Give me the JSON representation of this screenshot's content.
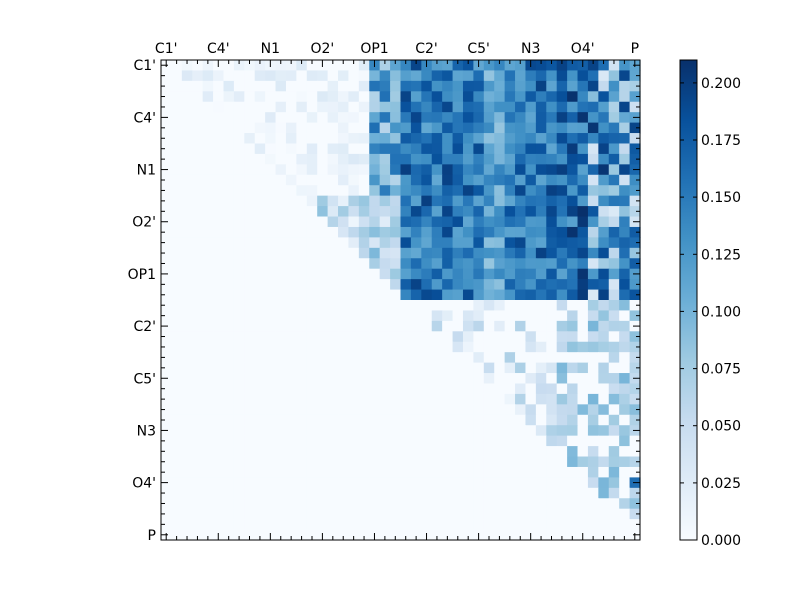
{
  "chart_data": {
    "type": "heatmap",
    "title": "",
    "xlabel": "",
    "ylabel": "",
    "size": 46,
    "tick_labels": [
      "C1'",
      "C4'",
      "N1",
      "O2'",
      "OP1",
      "C2'",
      "C5'",
      "N3",
      "O4'",
      "P"
    ],
    "tick_positions": [
      0,
      5,
      10,
      15,
      20,
      25,
      30,
      35,
      40,
      45
    ],
    "x_ticks_on_top": true,
    "colormap": "Blues",
    "clim": [
      0.0,
      0.21
    ],
    "colorbar": {
      "ticks": [
        0.0,
        0.025,
        0.05,
        0.075,
        0.1,
        0.125,
        0.15,
        0.175,
        0.2
      ],
      "tick_labels": [
        "0.000",
        "0.025",
        "0.050",
        "0.075",
        "0.100",
        "0.125",
        "0.150",
        "0.175",
        "0.200"
      ]
    },
    "structure": "upper-triangular matrix; lower triangle = 0. Rows 0-12: low values (0-0.05) for cols 1-19, high values (0.10-0.21) for cols 23-45. Rows 12-22: moderate (0.02-0.09) for cols 14-22, high for cols 23-45. Rows 23-45: mostly low values with scattered moderate-high cells near the diagonal in cols 38-45.",
    "colors": {
      "low": "#f7fbff",
      "high": "#08306b"
    }
  }
}
